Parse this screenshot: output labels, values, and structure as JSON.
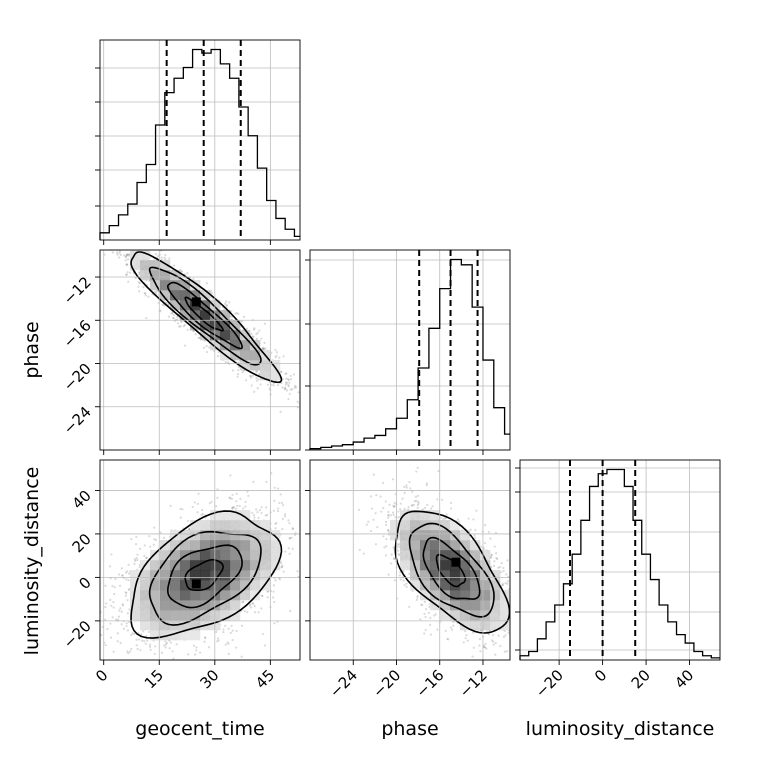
{
  "chart_data": {
    "type": "corner",
    "parameters": [
      "geocent_time",
      "phase",
      "luminosity_distance"
    ],
    "axis_labels": {
      "x": [
        "geocent_time",
        "phase",
        "luminosity_distance"
      ],
      "y": [
        "phase",
        "luminosity_distance"
      ]
    },
    "ranges": {
      "geocent_time": [
        -1,
        53
      ],
      "phase": [
        -28,
        -9.5
      ],
      "luminosity_distance": [
        -38,
        54
      ]
    },
    "ticks": {
      "geocent_time": [
        0,
        15,
        30,
        45
      ],
      "phase_x": [
        -24,
        -20,
        -16,
        -12
      ],
      "phase_y": [
        -12,
        -16,
        -20,
        -24
      ],
      "luminosity_distance_x": [
        -20,
        0,
        20,
        40
      ],
      "luminosity_distance_y": [
        40,
        20,
        0,
        -20
      ]
    },
    "tick_labels": {
      "geocent_time": [
        "0",
        "15",
        "30",
        "45"
      ],
      "phase_x": [
        "−24",
        "−20",
        "−16",
        "−12"
      ],
      "phase_y": [
        "−12",
        "−16",
        "−20",
        "−24"
      ],
      "luminosity_distance_x": [
        "−20",
        "0",
        "20",
        "40"
      ],
      "luminosity_distance_y": [
        "40",
        "20",
        "0",
        "−20"
      ]
    },
    "quantiles": {
      "geocent_time": [
        17,
        27,
        37
      ],
      "phase": [
        -17.9,
        -15,
        -12.5
      ],
      "luminosity_distance": [
        -15,
        0,
        15
      ]
    },
    "grid": true,
    "histograms": {
      "geocent_time": {
        "bin_edges": [
          -1,
          1.5,
          4,
          6.5,
          9,
          11.5,
          14,
          16.5,
          19,
          21.5,
          24,
          26.5,
          29,
          31.5,
          34,
          36.5,
          39,
          41.5,
          44,
          46.5,
          49,
          51.5,
          53
        ],
        "counts": [
          2,
          4,
          7,
          10,
          16,
          21,
          32,
          41,
          45,
          48,
          53,
          52,
          53,
          49,
          45,
          37,
          29,
          20,
          11,
          6,
          3,
          1
        ]
      },
      "phase": {
        "bin_edges": [
          -28,
          -27,
          -26,
          -25,
          -24,
          -23,
          -22,
          -21,
          -20,
          -19,
          -18,
          -17,
          -16,
          -15,
          -14,
          -13,
          -12,
          -11,
          -10,
          -9.5
        ],
        "counts": [
          0.5,
          1,
          1.5,
          2,
          3,
          4.5,
          5.5,
          8,
          12,
          19,
          31,
          46,
          61,
          72,
          70,
          54,
          34,
          16,
          6
        ]
      },
      "luminosity_distance": {
        "bin_edges": [
          -38,
          -34,
          -30,
          -26,
          -22,
          -18,
          -14,
          -10,
          -6,
          -2,
          2,
          6,
          10,
          14,
          18,
          22,
          26,
          30,
          34,
          38,
          42,
          46,
          50,
          54
        ],
        "counts": [
          1,
          2,
          5,
          9,
          13,
          18,
          25,
          33,
          41,
          44,
          45,
          45,
          41,
          33,
          25,
          19,
          13,
          9,
          6,
          4,
          2,
          1,
          0.5
        ]
      }
    },
    "joint": {
      "phase_vs_geocent_time": {
        "mean": [
          27,
          -15.5
        ],
        "std": [
          10,
          3
        ],
        "correlation": -0.93,
        "max_point": [
          25,
          -14.3
        ]
      },
      "luminosity_distance_vs_geocent_time": {
        "mean": [
          27,
          1
        ],
        "std": [
          10,
          14
        ],
        "correlation": 0.45,
        "max_point": [
          25,
          -3
        ]
      },
      "luminosity_distance_vs_phase": {
        "mean": [
          -15,
          3
        ],
        "std": [
          2.6,
          14
        ],
        "correlation": -0.6,
        "max_point": [
          -14.5,
          7
        ]
      }
    }
  }
}
